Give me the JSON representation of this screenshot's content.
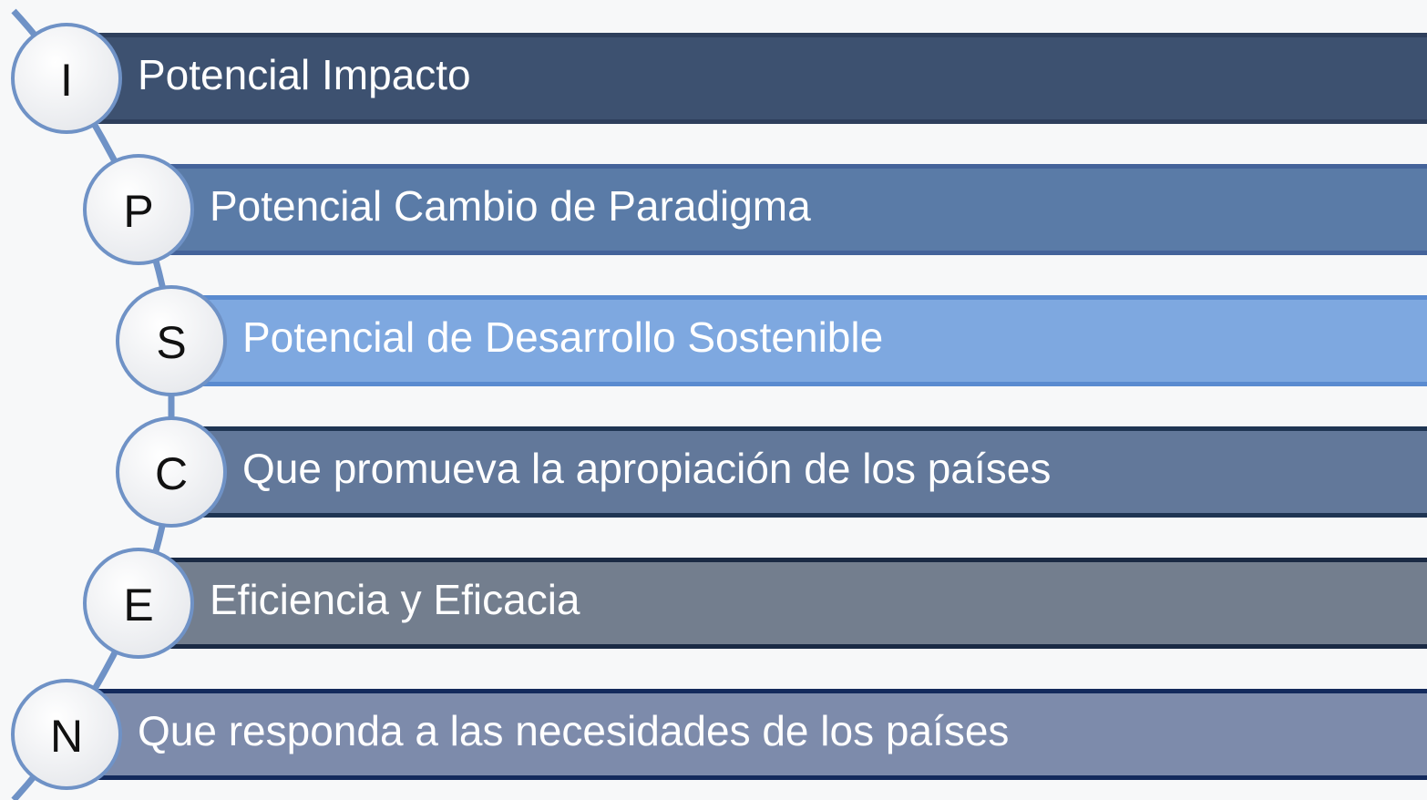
{
  "items": [
    {
      "letter": "I",
      "label": "Potencial Impacto",
      "color": "#3d5170",
      "edge": "#2e3f5c"
    },
    {
      "letter": "P",
      "label": "Potencial Cambio de Paradigma",
      "color": "#5a7ba7",
      "edge": "#44639a"
    },
    {
      "letter": "S",
      "label": "Potencial de Desarrollo Sostenible",
      "color": "#7ea8e0",
      "edge": "#5a8bd0"
    },
    {
      "letter": "C",
      "label": "Que promueva la apropiación de los países",
      "color": "#62789a",
      "edge": "#1f3553"
    },
    {
      "letter": "E",
      "label": "Eficiencia y Eficacia",
      "color": "#737e8e",
      "edge": "#1a2a44"
    },
    {
      "letter": "N",
      "label": "Que responda a las necesidades de los países",
      "color": "#7d8bab",
      "edge": "#132a5c"
    }
  ]
}
